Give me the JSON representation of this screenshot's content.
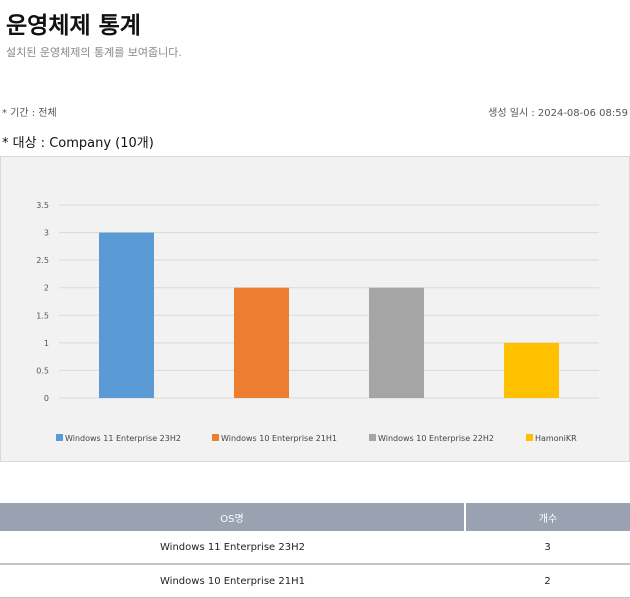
{
  "header": {
    "title": "운영체제 통계",
    "subtitle": "설치된 운영체제의 통계를 보여줍니다."
  },
  "meta": {
    "period": "* 기간 : 전체",
    "created": "생성 일시 : 2024-08-06 08:59",
    "target": "* 대상 : Company (10개)"
  },
  "chart_data": {
    "type": "bar",
    "categories": [
      "Windows 11 Enterprise 23H2",
      "Windows 10 Enterprise 21H1",
      "Windows 10 Enterprise 22H2",
      "HamoniKR"
    ],
    "values": [
      3,
      2,
      2,
      1
    ],
    "colors": [
      "#5b9bd5",
      "#ed7d31",
      "#a5a5a5",
      "#ffc000"
    ],
    "yticks": [
      "0",
      "0.5",
      "1",
      "1.5",
      "2",
      "2.5",
      "3",
      "3.5"
    ],
    "ylim": [
      0,
      3.5
    ],
    "grid": true,
    "legend_position": "bottom"
  },
  "table": {
    "headers": [
      "OS명",
      "개수"
    ],
    "rows": [
      {
        "os": "Windows 11 Enterprise 23H2",
        "count": "3"
      },
      {
        "os": "Windows 10 Enterprise 21H1",
        "count": "2"
      }
    ]
  }
}
